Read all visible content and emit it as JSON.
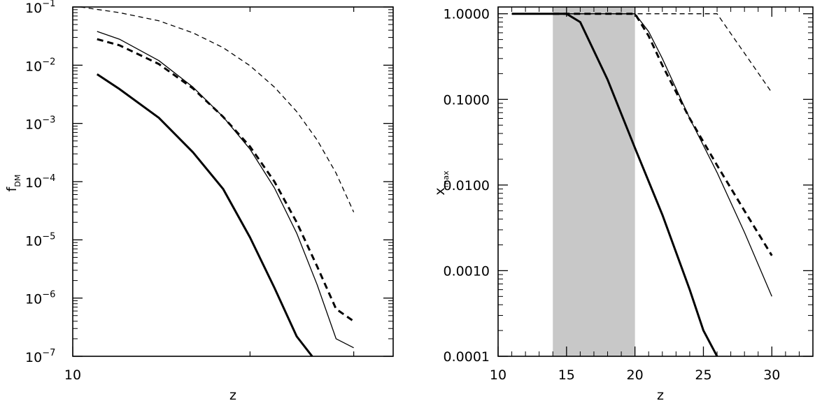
{
  "chart_data": [
    {
      "type": "line",
      "xlabel": "z",
      "ylabel_main": "f",
      "ylabel_sub": "DM",
      "xscale": "log",
      "yscale": "log",
      "xlim": [
        10,
        35
      ],
      "ylim": [
        1e-07,
        0.1
      ],
      "x_tick_labels": [
        "10"
      ],
      "y_ticks": [
        {
          "base": "10",
          "exp": "−1",
          "value": 0.1
        },
        {
          "base": "10",
          "exp": "−2",
          "value": 0.01
        },
        {
          "base": "10",
          "exp": "−3",
          "value": 0.001
        },
        {
          "base": "10",
          "exp": "−4",
          "value": 0.0001
        },
        {
          "base": "10",
          "exp": "−5",
          "value": 1e-05
        },
        {
          "base": "10",
          "exp": "−6",
          "value": 1e-06
        },
        {
          "base": "10",
          "exp": "−7",
          "value": 1e-07
        }
      ],
      "series": [
        {
          "style": "thin-dashed",
          "x": [
            10.3,
            12,
            14,
            16,
            18,
            20,
            22,
            24,
            26,
            28,
            30
          ],
          "y": [
            0.1,
            0.08,
            0.058,
            0.036,
            0.02,
            0.0098,
            0.0042,
            0.0016,
            0.00052,
            0.00014,
            3e-05
          ]
        },
        {
          "style": "thin-solid",
          "x": [
            11,
            12,
            14,
            16,
            18,
            20,
            22,
            24,
            26,
            28,
            30
          ],
          "y": [
            0.038,
            0.028,
            0.012,
            0.0042,
            0.0013,
            0.00036,
            7.8e-05,
            1.3e-05,
            1.7e-06,
            2e-07,
            1.4e-07
          ]
        },
        {
          "style": "thick-dashed",
          "x": [
            11,
            12,
            14,
            16,
            18,
            20,
            22,
            24,
            26,
            28,
            30
          ],
          "y": [
            0.028,
            0.022,
            0.0105,
            0.004,
            0.0013,
            0.0004,
            0.0001,
            2e-05,
            3.5e-06,
            6.5e-07,
            4e-07
          ]
        },
        {
          "style": "thick-solid",
          "x": [
            11,
            12,
            14,
            16,
            18,
            20,
            22,
            24,
            25.5
          ],
          "y": [
            0.007,
            0.0039,
            0.00125,
            0.00032,
            7.5e-05,
            1.1e-05,
            1.5e-06,
            2.2e-07,
            1e-07
          ]
        }
      ]
    },
    {
      "type": "line",
      "xlabel": "z",
      "ylabel_main": "x",
      "ylabel_sub": "max",
      "yscale": "log",
      "xlim": [
        10,
        33
      ],
      "ylim": [
        0.0001,
        1.2
      ],
      "x_tick_labels": [
        "10",
        "15",
        "20",
        "25",
        "30"
      ],
      "y_tick_labels": [
        "1.0000",
        "0.1000",
        "0.0100",
        "0.0010",
        "0.0001"
      ],
      "shaded_band": {
        "x": [
          14,
          20
        ],
        "color": "#c8c8c8"
      },
      "series": [
        {
          "style": "thick-solid",
          "x": [
            11,
            12,
            14,
            15,
            16,
            18,
            20,
            22,
            24,
            25,
            26
          ],
          "y": [
            1,
            1,
            1,
            1,
            0.8,
            0.17,
            0.027,
            0.0045,
            0.0006,
            0.0002,
            0.0001
          ]
        },
        {
          "style": "thin-dashed",
          "x": [
            11,
            14,
            20,
            22,
            24,
            26,
            30
          ],
          "y": [
            1,
            1,
            1,
            1,
            1,
            1,
            0.12
          ]
        },
        {
          "style": "thick-dashed",
          "x": [
            14,
            18,
            20,
            21,
            22,
            24,
            26,
            28,
            30
          ],
          "y": [
            1,
            1,
            1,
            0.55,
            0.25,
            0.06,
            0.017,
            0.005,
            0.0015
          ]
        },
        {
          "style": "thin-solid",
          "x": [
            11,
            14,
            20,
            21,
            22,
            24,
            26,
            28,
            30
          ],
          "y": [
            1,
            1,
            1,
            0.62,
            0.3,
            0.06,
            0.014,
            0.0028,
            0.0005
          ]
        }
      ]
    }
  ]
}
